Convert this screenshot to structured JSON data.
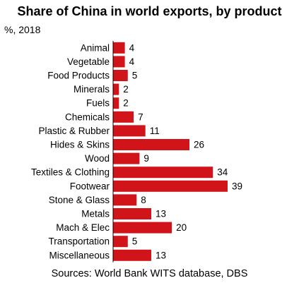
{
  "chart_data": {
    "type": "bar",
    "orientation": "horizontal",
    "title": "Share of China in world exports, by product",
    "subtitle": "%, 2018",
    "source": "Sources: World Bank WITS database, DBS",
    "bar_color": "#d0141a",
    "categories": [
      "Animal",
      "Vegetable",
      "Food Products",
      "Minerals",
      "Fuels",
      "Chemicals",
      "Plastic & Rubber",
      "Hides & Skins",
      "Wood",
      "Textiles & Clothing",
      "Footwear",
      "Stone & Glass",
      "Metals",
      "Mach & Elec",
      "Transportation",
      "Miscellaneous"
    ],
    "values": [
      4,
      4,
      5,
      2,
      2,
      7,
      11,
      26,
      9,
      34,
      39,
      8,
      13,
      20,
      5,
      13
    ],
    "data_labels": [
      "4",
      "4",
      "5",
      "2",
      "2",
      "7",
      "11",
      "26",
      "9",
      "34",
      "39",
      "8",
      "13",
      "20",
      "5",
      "13"
    ],
    "xlim": [
      0,
      39
    ],
    "grid": false,
    "legend": "none"
  }
}
